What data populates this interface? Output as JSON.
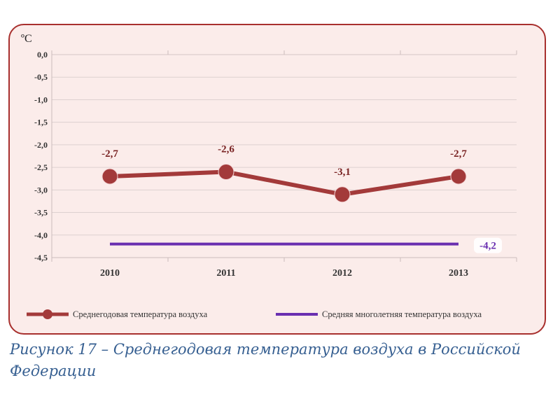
{
  "caption": "Рисунок 17 – Среднегодовая температура воздуха в Российской Федерации",
  "chart_data": {
    "type": "line",
    "categories": [
      "2010",
      "2011",
      "2012",
      "2013"
    ],
    "unit_label": "ºС",
    "ylim": [
      -4.5,
      0.0
    ],
    "yticks": [
      "0,0",
      "-0,5",
      "-1,0",
      "-1,5",
      "-2,0",
      "-2,5",
      "-3,0",
      "-3,5",
      "-4,0",
      "-4,5"
    ],
    "grid": true,
    "legend_position": "bottom",
    "series": [
      {
        "name": "Среднегодовая  температура воздуха",
        "values": [
          -2.7,
          -2.6,
          -3.1,
          -2.7
        ],
        "labels": [
          "-2,7",
          "-2,6",
          "-3,1",
          "-2,7"
        ],
        "color": "#a33a3a",
        "markers": true
      },
      {
        "name": "Средняя многолетняя температура воздуха",
        "values": [
          -4.2,
          -4.2,
          -4.2,
          -4.2
        ],
        "labels": [
          "",
          "",
          "",
          "-4,2"
        ],
        "color": "#6a2fb0",
        "markers": false
      }
    ]
  }
}
